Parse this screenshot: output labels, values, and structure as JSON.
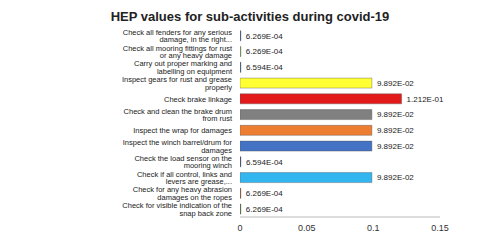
{
  "chart_data": {
    "type": "bar",
    "title": "HEP values for sub-activities during covid-19",
    "orientation": "horizontal",
    "data_labels": true,
    "grid": false,
    "categories": [
      "Check all fenders for any serious damage, in the right...",
      "Check all mooring fittings for rust or any heavy damage",
      "Carry out proper marking and labelling on equipment",
      "Inspect gears for rust and grease properly",
      "Check brake linkage",
      "Check and clean the brake drum from rust",
      "Inspect the wrap for damages",
      "Inspect the winch barrel/drum for damages",
      "Check the load sensor on the mooring winch",
      "Check if all control, links and levers are grease,...",
      "Check for any heavy abrasion damages on the ropes",
      "Check for visible indication of the snap back zone"
    ],
    "values": [
      0.0006269,
      0.0006269,
      0.0006594,
      0.09892,
      0.1212,
      0.09892,
      0.09892,
      0.09892,
      0.0006594,
      0.09892,
      0.0006269,
      0.0006269
    ],
    "value_labels": [
      "6.269E-04",
      "6.269E-04",
      "6.594E-04",
      "9.892E-02",
      "1.212E-01",
      "9.892E-02",
      "9.892E-02",
      "9.892E-02",
      "6.594E-04",
      "9.892E-02",
      "6.269E-04",
      "6.269E-04"
    ],
    "colors": [
      "#2f4b7c",
      "#70ad47",
      "#255e91",
      "#ffff33",
      "#e31a1c",
      "#808080",
      "#ed7d31",
      "#4472c4",
      "#264478",
      "#33b5f0",
      "#9e480e",
      "#43682b"
    ],
    "xlim": [
      0,
      0.15
    ],
    "xticks": [
      0,
      0.05,
      0.1,
      0.15
    ]
  }
}
